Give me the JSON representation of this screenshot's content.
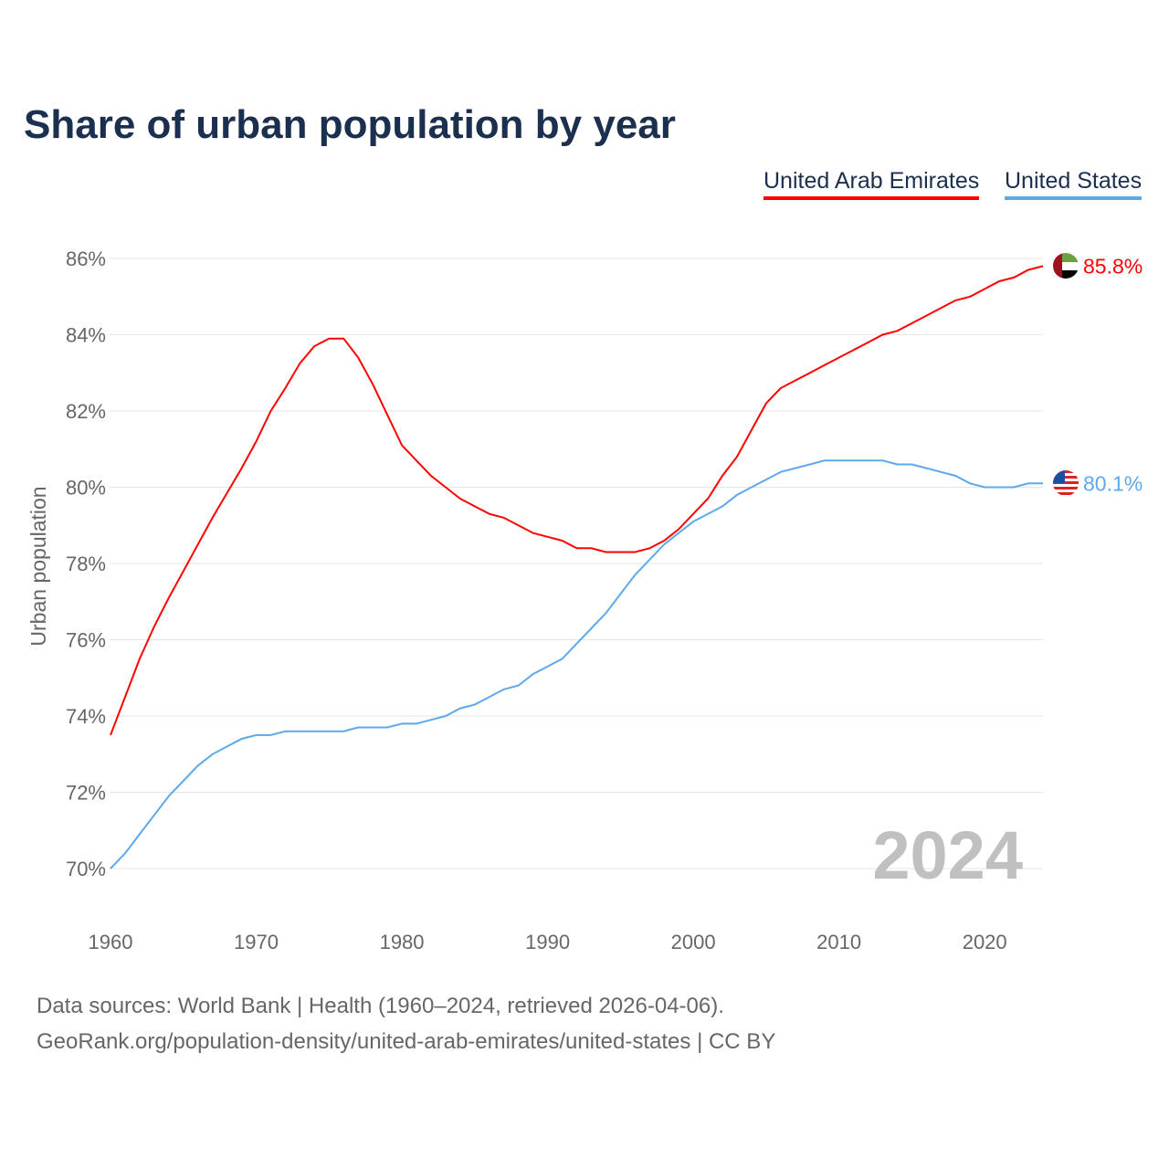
{
  "title": "Share of urban population by year",
  "legend": [
    {
      "label": "United Arab Emirates",
      "color": "#ff0000"
    },
    {
      "label": "United States",
      "color": "#5ea8ec"
    }
  ],
  "year_watermark": "2024",
  "footer": {
    "line1": "Data sources: World Bank | Health (1960–2024, retrieved 2026-04-06).",
    "line2": "GeoRank.org/population-density/united-arab-emirates/united-states | CC BY"
  },
  "chart_data": {
    "type": "line",
    "title": "Share of urban population by year",
    "xlabel": "",
    "ylabel": "Urban population",
    "xlim": [
      1960,
      2024
    ],
    "ylim": [
      70,
      86
    ],
    "grid": true,
    "legend_placement": "top-right",
    "x_ticks": [
      "1960",
      "1970",
      "1980",
      "1990",
      "2000",
      "2010",
      "2020"
    ],
    "y_ticks": [
      "70%",
      "72%",
      "74%",
      "76%",
      "78%",
      "80%",
      "82%",
      "84%",
      "86%"
    ],
    "x": [
      1960,
      1961,
      1962,
      1963,
      1964,
      1965,
      1966,
      1967,
      1968,
      1969,
      1970,
      1971,
      1972,
      1973,
      1974,
      1975,
      1976,
      1977,
      1978,
      1979,
      1980,
      1981,
      1982,
      1983,
      1984,
      1985,
      1986,
      1987,
      1988,
      1989,
      1990,
      1991,
      1992,
      1993,
      1994,
      1995,
      1996,
      1997,
      1998,
      1999,
      2000,
      2001,
      2002,
      2003,
      2004,
      2005,
      2006,
      2007,
      2008,
      2009,
      2010,
      2011,
      2012,
      2013,
      2014,
      2015,
      2016,
      2017,
      2018,
      2019,
      2020,
      2021,
      2022,
      2023,
      2024
    ],
    "series": [
      {
        "name": "United Arab Emirates",
        "color": "#ff0000",
        "end_label": "85.8%",
        "values": [
          73.5,
          74.5,
          75.5,
          76.35,
          77.1,
          77.8,
          78.5,
          79.2,
          79.85,
          80.5,
          81.2,
          82.0,
          82.6,
          83.25,
          83.7,
          83.9,
          83.9,
          83.4,
          82.7,
          81.9,
          81.1,
          80.7,
          80.3,
          80.0,
          79.7,
          79.5,
          79.3,
          79.2,
          79.0,
          78.8,
          78.7,
          78.6,
          78.4,
          78.4,
          78.3,
          78.3,
          78.3,
          78.4,
          78.6,
          78.9,
          79.3,
          79.7,
          80.3,
          80.8,
          81.5,
          82.2,
          82.6,
          82.8,
          83.0,
          83.2,
          83.4,
          83.6,
          83.8,
          84.0,
          84.1,
          84.3,
          84.5,
          84.7,
          84.9,
          85.0,
          85.2,
          85.4,
          85.5,
          85.7,
          85.8
        ]
      },
      {
        "name": "United States",
        "color": "#5ea8ec",
        "end_label": "80.1%",
        "values": [
          70.0,
          70.4,
          70.9,
          71.4,
          71.9,
          72.3,
          72.7,
          73.0,
          73.2,
          73.4,
          73.5,
          73.5,
          73.6,
          73.6,
          73.6,
          73.6,
          73.6,
          73.7,
          73.7,
          73.7,
          73.8,
          73.8,
          73.9,
          74.0,
          74.2,
          74.3,
          74.5,
          74.7,
          74.8,
          75.1,
          75.3,
          75.5,
          75.9,
          76.3,
          76.7,
          77.2,
          77.7,
          78.1,
          78.5,
          78.8,
          79.1,
          79.3,
          79.5,
          79.8,
          80.0,
          80.2,
          80.4,
          80.5,
          80.6,
          80.7,
          80.7,
          80.7,
          80.7,
          80.7,
          80.6,
          80.6,
          80.5,
          80.4,
          80.3,
          80.1,
          80.0,
          80.0,
          80.0,
          80.1,
          80.1
        ]
      }
    ]
  }
}
